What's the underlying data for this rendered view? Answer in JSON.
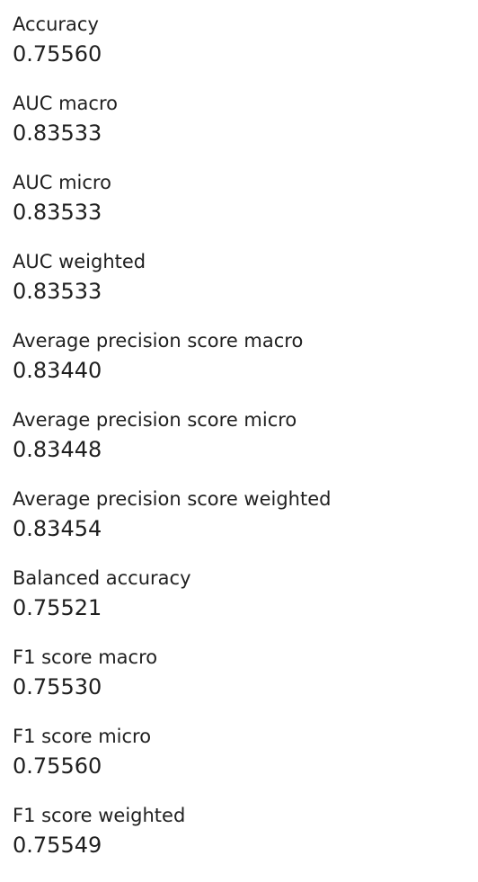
{
  "metrics": [
    {
      "label": "Accuracy",
      "value": "0.75560"
    },
    {
      "label": "AUC macro",
      "value": "0.83533"
    },
    {
      "label": "AUC micro",
      "value": "0.83533"
    },
    {
      "label": "AUC weighted",
      "value": "0.83533"
    },
    {
      "label": "Average precision score macro",
      "value": "0.83440"
    },
    {
      "label": "Average precision score micro",
      "value": "0.83448"
    },
    {
      "label": "Average precision score weighted",
      "value": "0.83454"
    },
    {
      "label": "Balanced accuracy",
      "value": "0.75521"
    },
    {
      "label": "F1 score macro",
      "value": "0.75530"
    },
    {
      "label": "F1 score micro",
      "value": "0.75560"
    },
    {
      "label": "F1 score weighted",
      "value": "0.75549"
    }
  ]
}
